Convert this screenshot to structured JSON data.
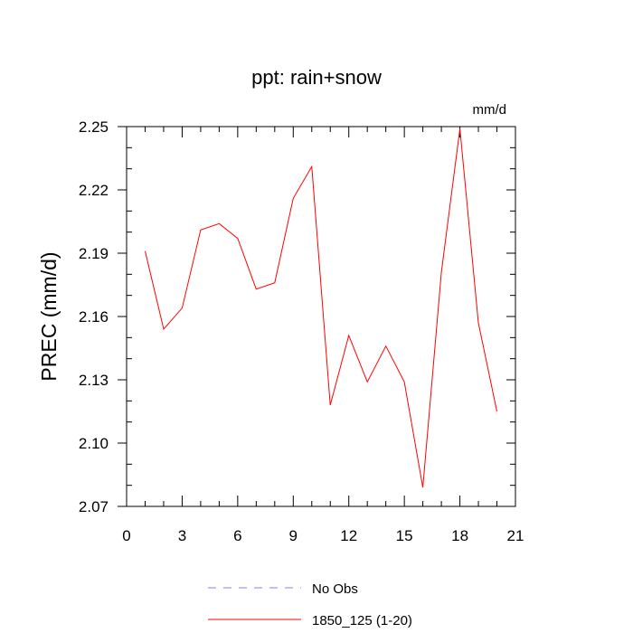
{
  "chart_data": {
    "type": "line",
    "title": "ppt: rain+snow",
    "units_label": "mm/d",
    "ylabel": "PREC  (mm/d)",
    "xlabel": "",
    "xlim": [
      0,
      21
    ],
    "ylim": [
      2.07,
      2.25
    ],
    "x_ticks": [
      0,
      3,
      6,
      9,
      12,
      15,
      18,
      21
    ],
    "x_tick_labels": [
      "0",
      "3",
      "6",
      "9",
      "12",
      "15",
      "18",
      "21"
    ],
    "y_ticks": [
      2.07,
      2.1,
      2.13,
      2.16,
      2.19,
      2.22,
      2.25
    ],
    "y_tick_labels": [
      "2.07",
      "2.10",
      "2.13",
      "2.16",
      "2.19",
      "2.22",
      "2.25"
    ],
    "grid": false,
    "legend_placement": "bottom",
    "series": [
      {
        "name": "1850_125 (1-20)",
        "color": "#ff0000",
        "style": "solid",
        "x": [
          1,
          2,
          3,
          4,
          5,
          6,
          7,
          8,
          9,
          10,
          11,
          12,
          13,
          14,
          15,
          16,
          17,
          18,
          19,
          20
        ],
        "y": [
          2.191,
          2.154,
          2.164,
          2.201,
          2.204,
          2.197,
          2.173,
          2.176,
          2.216,
          2.231,
          2.118,
          2.151,
          2.129,
          2.146,
          2.129,
          2.079,
          2.181,
          2.249,
          2.157,
          2.115
        ]
      }
    ],
    "legend": [
      {
        "label": "No Obs",
        "color": "#8080ff",
        "style": "dashed"
      },
      {
        "label": "1850_125 (1-20)",
        "color": "#ff0000",
        "style": "solid"
      }
    ]
  }
}
